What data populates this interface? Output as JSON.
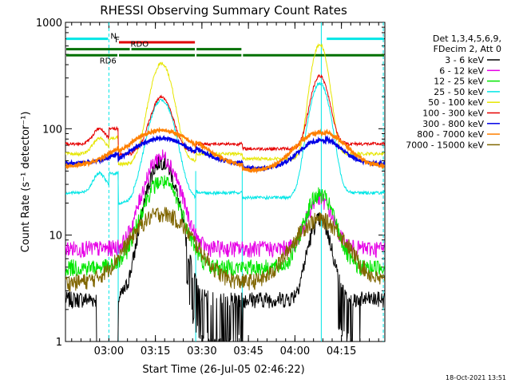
{
  "chart_data": {
    "type": "line",
    "title": "RHESSI Observing Summary Count Rates",
    "xlabel": "Start Time (26-Jul-05 02:46:22)",
    "ylabel": "Count Rate (s⁻¹ detector⁻¹)",
    "ylog": true,
    "ylim": [
      1,
      1000
    ],
    "yticks": [
      {
        "v": 1,
        "label": "1"
      },
      {
        "v": 10,
        "label": "10"
      },
      {
        "v": 100,
        "label": "100"
      },
      {
        "v": 1000,
        "label": "1000"
      }
    ],
    "xlim_min": [
      0,
      103
    ],
    "xticks": [
      {
        "t": 14,
        "label": "03:00"
      },
      {
        "t": 29,
        "label": "03:15"
      },
      {
        "t": 44,
        "label": "03:30"
      },
      {
        "t": 59,
        "label": "03:45"
      },
      {
        "t": 74,
        "label": "04:00"
      },
      {
        "t": 89,
        "label": "04:15"
      }
    ],
    "legend": {
      "placement": "right",
      "header": [
        "Det 1,3,4,5,6,9,",
        "FDecim 2, Att 0"
      ]
    },
    "footer": "18-Oct-2021 13:51",
    "flags": [
      {
        "label": "N",
        "color": "#00e6e6",
        "segments": [
          [
            0,
            14
          ],
          [
            84,
            103
          ]
        ],
        "y": 700
      },
      {
        "label": "F",
        "color": "#e00000",
        "segments": [
          [
            17,
            42
          ]
        ],
        "y": 650
      },
      {
        "label": "RDO",
        "color": "#007000",
        "segments": [
          [
            0,
            21
          ],
          [
            21,
            42
          ],
          [
            42,
            57
          ]
        ],
        "y": 560,
        "label_t": 21
      },
      {
        "label": "RD6",
        "color": "#007000",
        "segments": [
          [
            0,
            17
          ],
          [
            17,
            42
          ],
          [
            42,
            57
          ],
          [
            57,
            103
          ]
        ],
        "y": 490,
        "label_t": 11
      }
    ],
    "vlines": [
      {
        "t": 14,
        "color": "#00e6e6",
        "dashed": true
      },
      {
        "t": 82.5,
        "color": "#00e6e6",
        "dashed": false
      },
      {
        "t": 102.5,
        "color": "#00e6e6",
        "dashed": true
      },
      {
        "t": 17,
        "color": "#00e6e6",
        "dashed": false
      },
      {
        "t": 42,
        "color": "#00e6e6",
        "dashed": false
      },
      {
        "t": 57,
        "color": "#00e6e6",
        "dashed": false
      }
    ],
    "series": [
      {
        "name": "3 - 6 keV",
        "color": "#000000",
        "base": 2.5,
        "peaks": [
          [
            31,
            50,
            4
          ],
          [
            82,
            14,
            3
          ]
        ],
        "drop": [
          [
            10,
            17,
            0.8
          ]
        ]
      },
      {
        "name": "6 - 12 keV",
        "color": "#e600e6",
        "base": 7.5,
        "peaks": [
          [
            31,
            55,
            4.5
          ],
          [
            82,
            22,
            3.5
          ]
        ]
      },
      {
        "name": "12 - 25 keV",
        "color": "#00e600",
        "base": 5.0,
        "peaks": [
          [
            31,
            32,
            5
          ],
          [
            82,
            24,
            4
          ]
        ]
      },
      {
        "name": "25 - 50 keV",
        "color": "#00e6e6",
        "base": 25,
        "peaks": [
          [
            31,
            190,
            3.5
          ],
          [
            82,
            270,
            2.8
          ]
        ],
        "bump": [
          [
            11,
            38,
            2
          ]
        ]
      },
      {
        "name": "50 - 100 keV",
        "color": "#e6e600",
        "base": 58,
        "peaks": [
          [
            31,
            420,
            3
          ],
          [
            82,
            630,
            2.3
          ]
        ],
        "bump": [
          [
            11,
            82,
            2
          ]
        ]
      },
      {
        "name": "100 - 300 keV",
        "color": "#e60000",
        "base": 72,
        "peaks": [
          [
            31,
            210,
            3
          ],
          [
            82,
            320,
            2.5
          ]
        ],
        "bump": [
          [
            11,
            100,
            2
          ]
        ]
      },
      {
        "name": "300 - 800 keV",
        "color": "#0000e6",
        "base": 47,
        "peaks": [
          [
            31,
            88,
            9
          ],
          [
            82,
            82,
            6
          ]
        ]
      },
      {
        "name": "800 - 7000 keV",
        "color": "#ff8000",
        "base": 44,
        "peaks": [
          [
            31,
            103,
            10
          ],
          [
            82,
            96,
            7
          ]
        ]
      },
      {
        "name": "7000 - 15000 keV",
        "color": "#806600",
        "base": 3.6,
        "peaks": [
          [
            31,
            16,
            8
          ],
          [
            82,
            14,
            7
          ]
        ]
      }
    ]
  }
}
